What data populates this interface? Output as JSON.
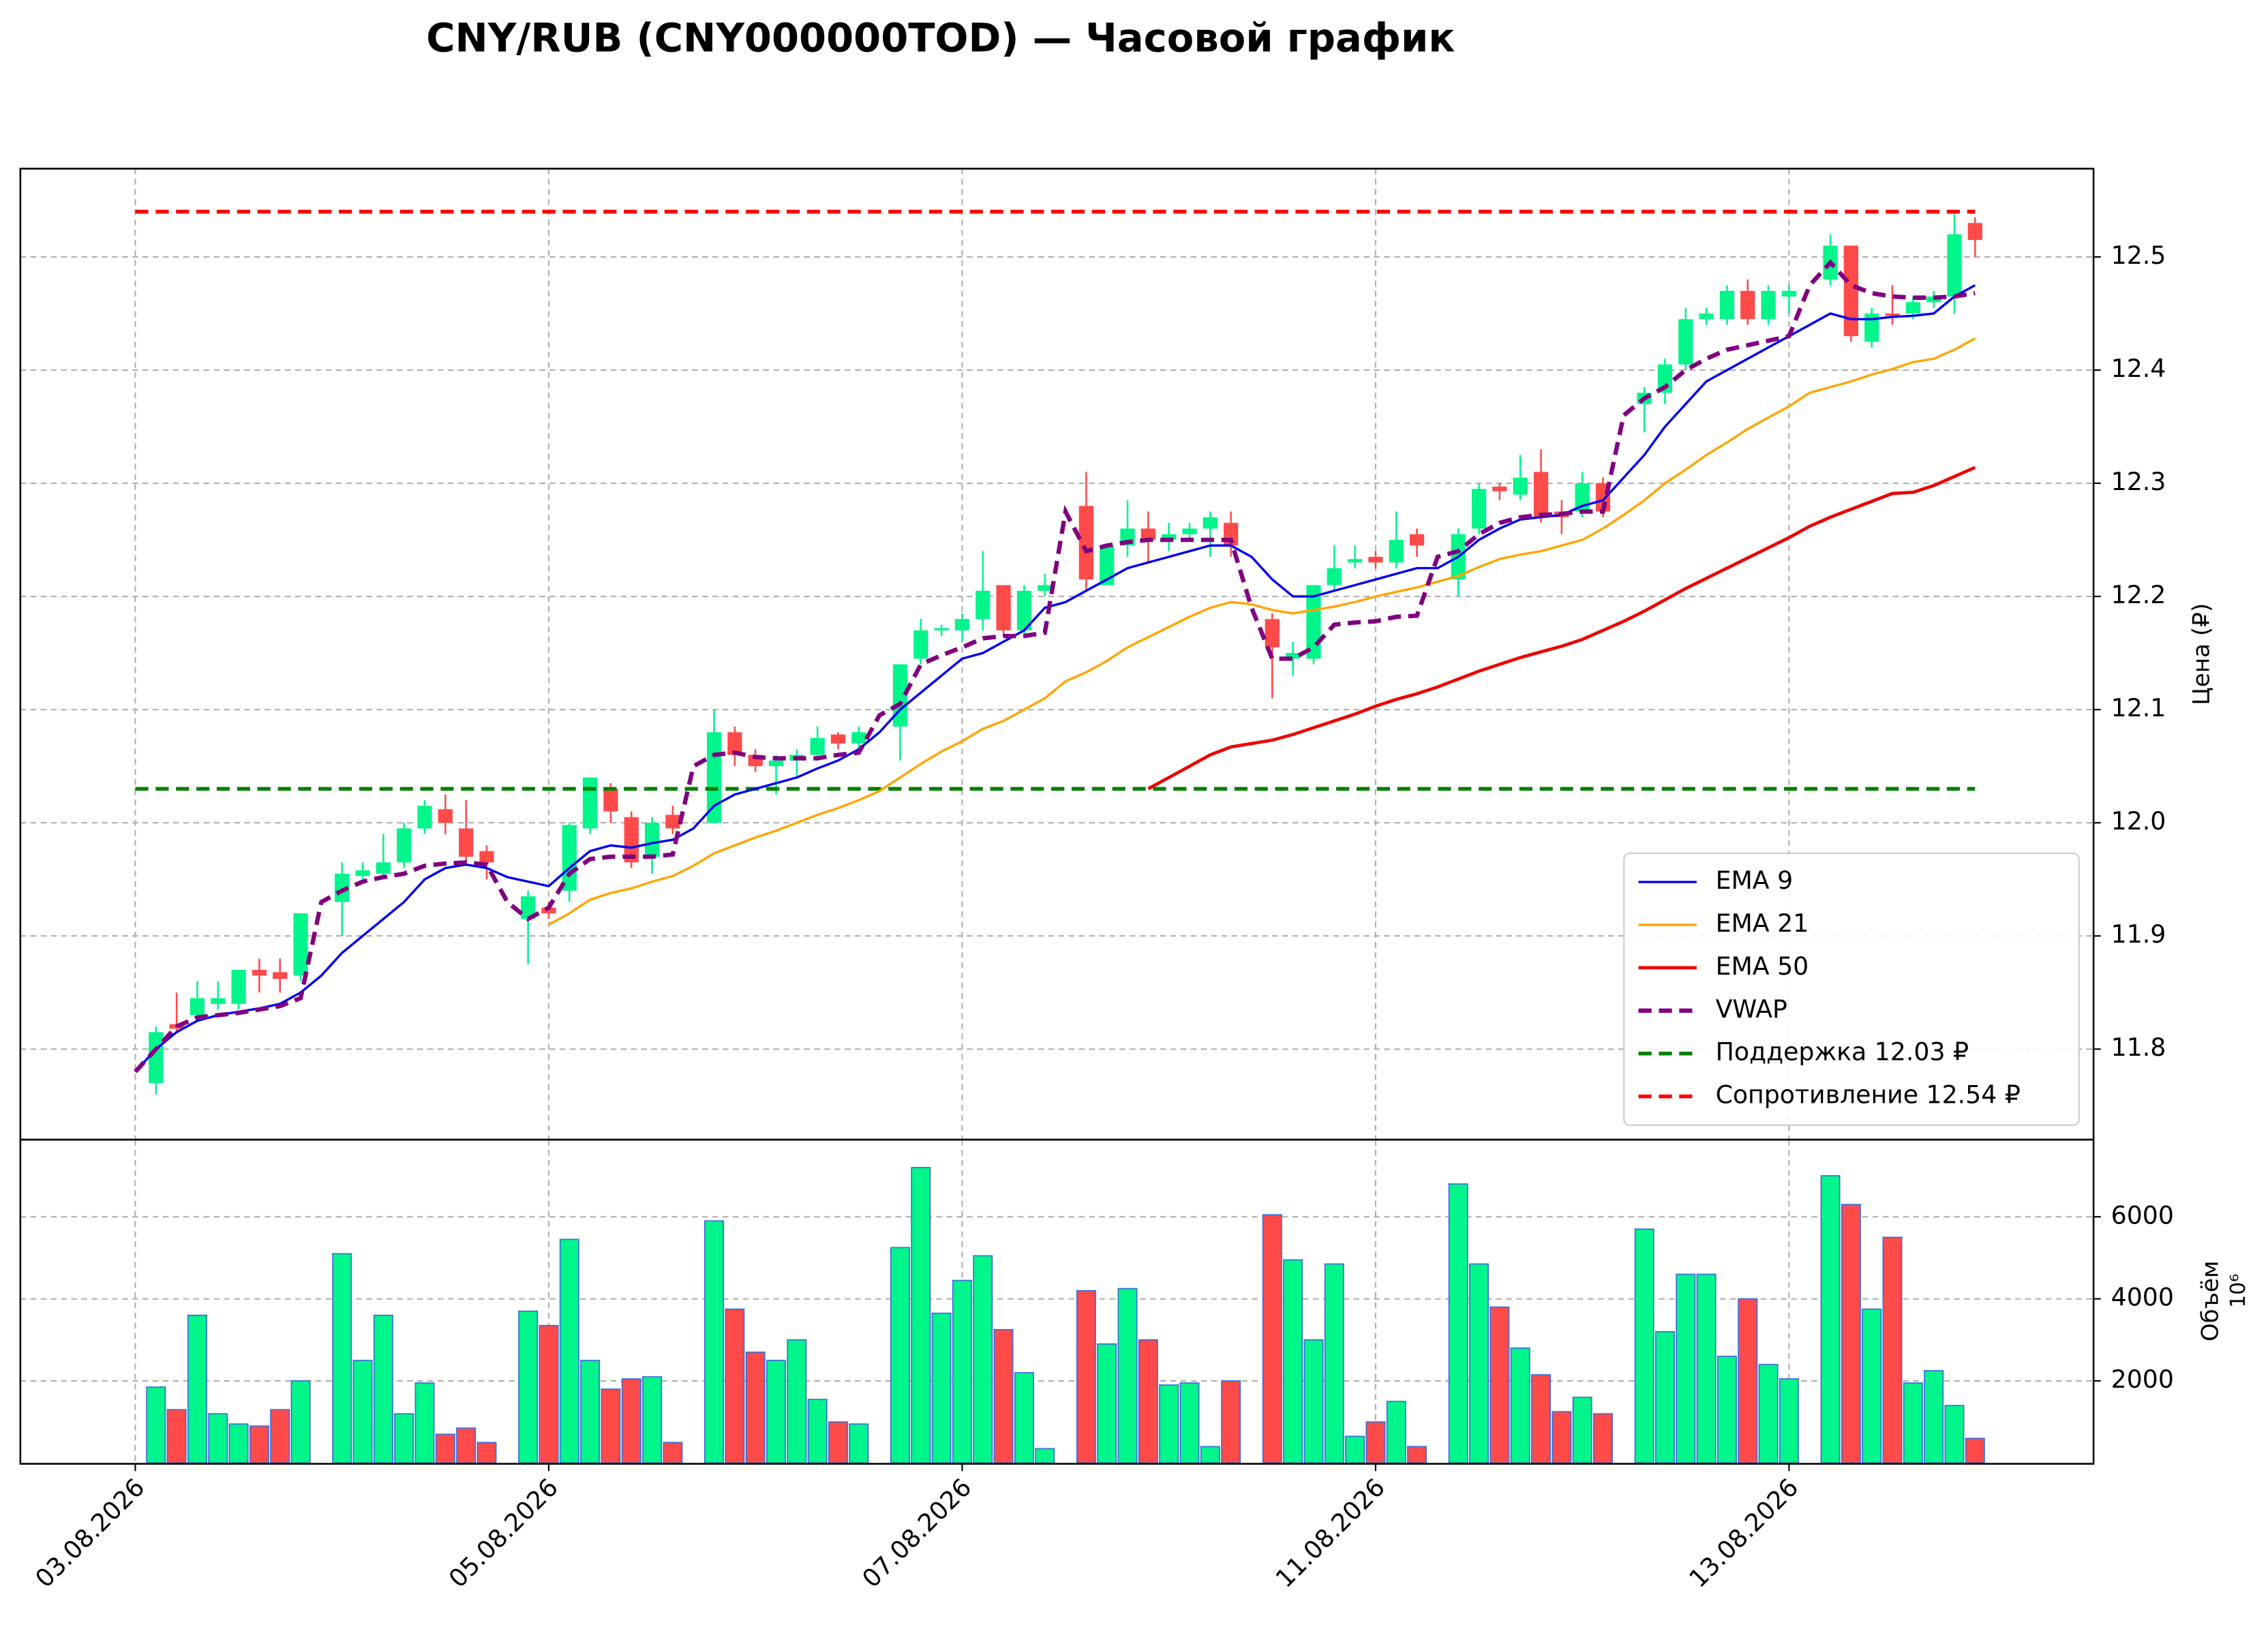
{
  "chart_data": {
    "type": "candlestick",
    "title": "CNY/RUB (CNY000000TOD) — Часовой график",
    "y_label": "Цена (₽)",
    "volume_label": "Объём",
    "volume_offset_label": "10⁶",
    "grid": true,
    "legend": "lower right",
    "up_color": "#00f58a",
    "down_color": "#ff4a4a",
    "volume_edge_color": "#3a6fd8",
    "xlim": [
      -5.56,
      94.73
    ],
    "xticks": [
      {
        "value": 0,
        "label": "03.08.2026"
      },
      {
        "value": 20,
        "label": "05.08.2026"
      },
      {
        "value": 40,
        "label": "07.08.2026"
      },
      {
        "value": 60,
        "label": "11.08.2026"
      },
      {
        "value": 80,
        "label": "13.08.2026"
      }
    ],
    "ylim": [
      11.72,
      12.578
    ],
    "yticks": [
      11.8,
      11.9,
      {
        "value": 12,
        "label": "12.0"
      },
      12.1,
      12.2,
      12.3,
      12.4,
      12.5
    ],
    "volume_ylim": [
      -20,
      7880
    ],
    "volume_yticks": [
      2000,
      4000,
      6000
    ],
    "open": [
      null,
      11.77,
      11.822,
      11.83,
      11.84,
      11.84,
      11.87,
      11.868,
      11.865,
      null,
      11.93,
      11.953,
      11.955,
      11.965,
      11.995,
      12.012,
      11.995,
      11.975,
      null,
      11.915,
      11.925,
      11.94,
      11.995,
      12.03,
      12.005,
      11.97,
      12.007,
      null,
      12.0,
      12.08,
      12.06,
      12.05,
      12.055,
      12.06,
      12.078,
      12.07,
      null,
      12.085,
      12.145,
      12.17,
      12.17,
      12.18,
      12.21,
      12.17,
      12.205,
      null,
      12.28,
      12.21,
      12.245,
      12.26,
      12.25,
      12.255,
      12.26,
      12.265,
      null,
      12.18,
      12.145,
      12.145,
      12.21,
      12.23,
      12.235,
      12.23,
      12.255,
      null,
      12.215,
      12.26,
      12.297,
      12.29,
      12.31,
      12.275,
      12.275,
      12.3,
      null,
      12.37,
      12.38,
      12.405,
      12.445,
      12.445,
      12.47,
      12.445,
      12.465,
      null,
      12.48,
      12.51,
      12.425,
      12.45,
      12.45,
      12.46,
      12.465,
      12.53
    ],
    "high": [
      null,
      11.82,
      11.85,
      11.86,
      11.86,
      11.87,
      11.88,
      11.88,
      11.92,
      null,
      11.965,
      11.965,
      11.99,
      12.0,
      12.02,
      12.025,
      12.02,
      11.98,
      null,
      11.94,
      11.93,
      12.0,
      12.04,
      12.035,
      12.01,
      12.005,
      12.015,
      null,
      12.1,
      12.085,
      12.065,
      12.06,
      12.065,
      12.085,
      12.08,
      12.085,
      null,
      12.14,
      12.18,
      12.175,
      12.185,
      12.24,
      12.21,
      12.21,
      12.22,
      null,
      12.31,
      12.245,
      12.285,
      12.275,
      12.265,
      12.265,
      12.275,
      12.275,
      null,
      12.185,
      12.16,
      12.21,
      12.245,
      12.245,
      12.24,
      12.275,
      12.26,
      null,
      12.26,
      12.3,
      12.3,
      12.325,
      12.33,
      12.285,
      12.31,
      12.305,
      null,
      12.385,
      12.41,
      12.455,
      12.455,
      12.475,
      12.48,
      12.475,
      12.475,
      null,
      12.52,
      12.51,
      12.455,
      12.475,
      12.465,
      12.47,
      12.54,
      12.535
    ],
    "low": [
      null,
      11.76,
      11.815,
      11.825,
      11.835,
      11.835,
      11.85,
      11.85,
      11.86,
      null,
      11.9,
      11.95,
      11.95,
      11.96,
      11.99,
      11.99,
      11.965,
      11.95,
      null,
      11.875,
      11.915,
      11.93,
      11.99,
      12.0,
      11.96,
      11.955,
      11.99,
      null,
      12.0,
      12.05,
      12.045,
      12.025,
      12.04,
      12.055,
      12.065,
      12.065,
      null,
      12.055,
      12.14,
      12.165,
      12.16,
      12.17,
      12.165,
      12.165,
      12.2,
      null,
      12.205,
      12.21,
      12.235,
      12.23,
      12.24,
      12.25,
      12.235,
      12.235,
      null,
      12.11,
      12.13,
      12.14,
      12.205,
      12.225,
      12.225,
      12.225,
      12.235,
      null,
      12.2,
      12.255,
      12.285,
      12.285,
      12.265,
      12.255,
      12.27,
      12.27,
      null,
      12.345,
      12.37,
      12.4,
      12.44,
      12.44,
      12.44,
      12.44,
      12.45,
      null,
      12.475,
      12.425,
      12.42,
      12.44,
      12.445,
      12.455,
      12.45,
      12.5
    ],
    "close": [
      null,
      11.815,
      11.818,
      11.845,
      11.845,
      11.87,
      11.865,
      11.862,
      11.92,
      null,
      11.955,
      11.958,
      11.965,
      11.995,
      12.015,
      12.0,
      11.97,
      11.965,
      null,
      11.935,
      11.92,
      11.998,
      12.04,
      12.01,
      11.965,
      12.0,
      11.995,
      null,
      12.08,
      12.06,
      12.05,
      12.055,
      12.06,
      12.075,
      12.07,
      12.08,
      null,
      12.14,
      12.17,
      12.172,
      12.18,
      12.205,
      12.17,
      12.205,
      12.21,
      null,
      12.215,
      12.245,
      12.26,
      12.25,
      12.255,
      12.26,
      12.27,
      12.245,
      null,
      12.155,
      12.15,
      12.21,
      12.225,
      12.233,
      12.23,
      12.25,
      12.245,
      null,
      12.255,
      12.295,
      12.293,
      12.305,
      12.27,
      12.27,
      12.3,
      12.275,
      null,
      12.38,
      12.405,
      12.445,
      12.45,
      12.47,
      12.445,
      12.47,
      12.47,
      null,
      12.51,
      12.43,
      12.45,
      12.448,
      12.46,
      12.465,
      12.52,
      12.515
    ],
    "volume": [
      null,
      1850,
      1300,
      3600,
      1200,
      950,
      900,
      1300,
      2000,
      null,
      5100,
      2500,
      3600,
      1200,
      1950,
      700,
      850,
      500,
      null,
      3700,
      3350,
      5450,
      2500,
      1800,
      2050,
      2100,
      500,
      null,
      5900,
      3750,
      2700,
      2500,
      3000,
      1550,
      1000,
      950,
      null,
      5250,
      7200,
      3650,
      4450,
      5050,
      3250,
      2200,
      350,
      null,
      4200,
      2900,
      4250,
      3000,
      1900,
      1950,
      400,
      2000,
      null,
      6050,
      4950,
      3000,
      4850,
      650,
      1000,
      1500,
      400,
      null,
      6800,
      4850,
      3800,
      2800,
      2150,
      1250,
      1600,
      1200,
      null,
      5700,
      3200,
      4600,
      4600,
      2600,
      4000,
      2400,
      2050,
      null,
      7000,
      6300,
      3750,
      5500,
      1950,
      2250,
      1400,
      600
    ],
    "lines": [
      {
        "name": "EMA 9",
        "color": "#0000ee",
        "style": "solid",
        "width": 1.6,
        "values": [
          11.78,
          11.8,
          11.815,
          11.825,
          11.83,
          11.833,
          11.836,
          11.84,
          11.85,
          11.865,
          11.885,
          11.9,
          11.915,
          11.93,
          11.95,
          11.96,
          11.963,
          11.96,
          11.952,
          11.948,
          11.944,
          11.96,
          11.975,
          11.98,
          11.978,
          11.982,
          11.985,
          11.995,
          12.015,
          12.025,
          12.03,
          12.035,
          12.04,
          12.048,
          12.055,
          12.065,
          12.08,
          12.1,
          12.115,
          12.13,
          12.145,
          12.15,
          12.16,
          12.17,
          12.19,
          12.195,
          12.205,
          12.215,
          12.225,
          12.23,
          12.235,
          12.24,
          12.245,
          12.245,
          12.235,
          12.215,
          12.2,
          12.2,
          12.205,
          12.21,
          12.215,
          12.22,
          12.225,
          12.225,
          12.235,
          12.25,
          12.26,
          12.268,
          12.27,
          12.272,
          12.28,
          12.285,
          12.305,
          12.325,
          12.35,
          12.37,
          12.39,
          12.4,
          12.41,
          12.42,
          12.43,
          12.44,
          12.45,
          12.445,
          12.445,
          12.447,
          12.448,
          12.45,
          12.465,
          12.475
        ]
      },
      {
        "name": "EMA 21",
        "color": "#ffa500",
        "style": "solid",
        "width": 1.6,
        "values": [
          null,
          null,
          null,
          null,
          null,
          null,
          null,
          null,
          null,
          null,
          null,
          null,
          null,
          null,
          null,
          null,
          null,
          null,
          null,
          null,
          11.91,
          11.92,
          11.932,
          11.938,
          11.942,
          11.948,
          11.953,
          11.962,
          11.973,
          11.98,
          11.987,
          11.993,
          12.0,
          12.007,
          12.013,
          12.02,
          12.028,
          12.04,
          12.052,
          12.063,
          12.072,
          12.083,
          12.09,
          12.1,
          12.11,
          12.125,
          12.133,
          12.143,
          12.155,
          12.164,
          12.173,
          12.182,
          12.19,
          12.195,
          12.193,
          12.188,
          12.185,
          12.188,
          12.191,
          12.195,
          12.2,
          12.204,
          12.208,
          12.213,
          12.218,
          12.226,
          12.233,
          12.237,
          12.24,
          12.245,
          12.25,
          12.26,
          12.272,
          12.285,
          12.3,
          12.312,
          12.325,
          12.336,
          12.348,
          12.358,
          12.368,
          12.38,
          12.385,
          12.39,
          12.396,
          12.401,
          12.407,
          12.41,
          12.418,
          12.428
        ]
      },
      {
        "name": "EMA 50",
        "color": "#ee0000",
        "style": "solid",
        "width": 2.2,
        "values": [
          null,
          null,
          null,
          null,
          null,
          null,
          null,
          null,
          null,
          null,
          null,
          null,
          null,
          null,
          null,
          null,
          null,
          null,
          null,
          null,
          null,
          null,
          null,
          null,
          null,
          null,
          null,
          null,
          null,
          null,
          null,
          null,
          null,
          null,
          null,
          null,
          null,
          null,
          null,
          null,
          null,
          null,
          null,
          null,
          null,
          null,
          null,
          null,
          null,
          12.03,
          12.04,
          12.05,
          12.06,
          12.067,
          12.07,
          12.073,
          12.078,
          12.084,
          12.09,
          12.096,
          12.103,
          12.109,
          12.114,
          12.12,
          12.127,
          12.134,
          12.14,
          12.146,
          12.151,
          12.156,
          12.162,
          12.17,
          12.178,
          12.187,
          12.197,
          12.207,
          12.216,
          12.225,
          12.234,
          12.243,
          12.252,
          12.262,
          12.27,
          12.277,
          12.284,
          12.291,
          12.292,
          12.298,
          12.306,
          12.314
        ]
      },
      {
        "name": "VWAP",
        "color": "#800080",
        "style": "dashed",
        "width": 3,
        "values": [
          11.78,
          11.8,
          11.82,
          11.828,
          11.83,
          11.832,
          11.835,
          11.838,
          11.845,
          11.93,
          11.94,
          11.948,
          11.952,
          11.955,
          11.962,
          11.964,
          11.965,
          11.963,
          11.93,
          11.915,
          11.925,
          11.955,
          11.968,
          11.97,
          11.97,
          11.97,
          11.972,
          12.05,
          12.06,
          12.062,
          12.058,
          12.057,
          12.057,
          12.057,
          12.06,
          12.062,
          12.095,
          12.105,
          12.14,
          12.148,
          12.155,
          12.163,
          12.165,
          12.165,
          12.168,
          12.275,
          12.24,
          12.245,
          12.248,
          12.25,
          12.25,
          12.25,
          12.25,
          12.25,
          12.19,
          12.145,
          12.145,
          12.155,
          12.175,
          12.177,
          12.178,
          12.182,
          12.183,
          12.235,
          12.24,
          12.255,
          12.265,
          12.27,
          12.272,
          12.273,
          12.275,
          12.275,
          12.36,
          12.375,
          12.385,
          12.4,
          12.41,
          12.418,
          12.422,
          12.426,
          12.43,
          12.475,
          12.495,
          12.475,
          12.468,
          12.465,
          12.464,
          12.464,
          12.465,
          12.468
        ]
      }
    ],
    "levels": [
      {
        "name": "Поддержка 12.03 ₽",
        "color": "#008000",
        "value": 12.03
      },
      {
        "name": "Сопротивление 12.54 ₽",
        "color": "#ff0000",
        "value": 12.54
      }
    ]
  }
}
